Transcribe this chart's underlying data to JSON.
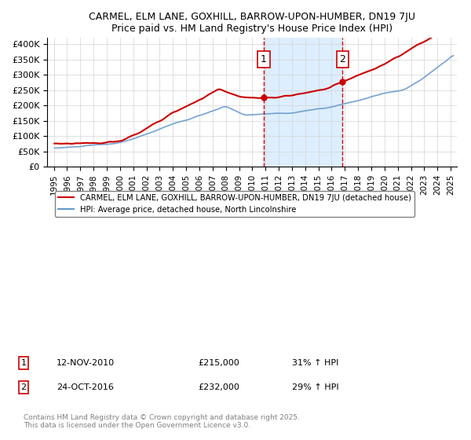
{
  "title": "CARMEL, ELM LANE, GOXHILL, BARROW-UPON-HUMBER, DN19 7JU",
  "subtitle": "Price paid vs. HM Land Registry's House Price Index (HPI)",
  "legend_line1": "CARMEL, ELM LANE, GOXHILL, BARROW-UPON-HUMBER, DN19 7JU (detached house)",
  "legend_line2": "HPI: Average price, detached house, North Lincolnshire",
  "annotation1_date": "12-NOV-2010",
  "annotation1_price": "£215,000",
  "annotation1_hpi": "31% ↑ HPI",
  "annotation2_date": "24-OCT-2016",
  "annotation2_price": "£232,000",
  "annotation2_hpi": "29% ↑ HPI",
  "footer": "Contains HM Land Registry data © Crown copyright and database right 2025.\nThis data is licensed under the Open Government Licence v3.0.",
  "red_color": "#cc0000",
  "blue_color": "#6699cc",
  "vline1_x": 2010.87,
  "vline2_x": 2016.82,
  "shade_color": "#ddeeff",
  "ylim": [
    0,
    420000
  ],
  "xlim": [
    1994.5,
    2025.5
  ],
  "yticks": [
    0,
    50000,
    100000,
    150000,
    200000,
    250000,
    300000,
    350000,
    400000
  ],
  "ytick_labels": [
    "£0",
    "£50K",
    "£100K",
    "£150K",
    "£200K",
    "£250K",
    "£300K",
    "£350K",
    "£400K"
  ],
  "xticks": [
    1995,
    1996,
    1997,
    1998,
    1999,
    2000,
    2001,
    2002,
    2003,
    2004,
    2005,
    2006,
    2007,
    2008,
    2009,
    2010,
    2011,
    2012,
    2013,
    2014,
    2015,
    2016,
    2017,
    2018,
    2019,
    2020,
    2021,
    2022,
    2023,
    2024,
    2025
  ]
}
